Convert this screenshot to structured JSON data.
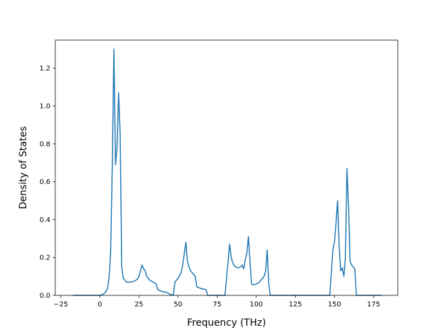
{
  "chart_data": {
    "type": "line",
    "title": "",
    "xlabel": "Frequency (THz)",
    "ylabel": "Density of States",
    "xlim": [
      -28.5,
      190.5
    ],
    "ylim": [
      0,
      1.3475
    ],
    "x_ticks": [
      -25,
      0,
      25,
      50,
      75,
      100,
      125,
      150,
      175
    ],
    "y_ticks": [
      0.0,
      0.2,
      0.4,
      0.6,
      0.8,
      1.0,
      1.2
    ],
    "grid": false,
    "legend": "none",
    "series": [
      {
        "color": "#1f77b4",
        "x": [
          -17,
          0,
          2,
          4,
          5,
          6,
          7,
          8,
          9,
          10,
          11,
          12,
          13,
          14,
          15,
          17,
          19,
          20,
          22,
          24,
          25,
          26,
          27,
          28,
          29,
          30,
          32,
          34,
          36,
          37,
          40,
          43,
          44,
          45,
          47,
          48,
          50,
          52,
          53,
          54,
          55,
          56,
          57,
          58,
          60,
          61,
          62,
          65,
          68,
          69,
          70,
          80,
          82,
          83,
          84,
          85,
          86,
          88,
          90,
          91,
          92,
          93,
          94,
          95,
          96,
          97,
          98,
          100,
          102,
          104,
          105,
          106,
          107,
          108,
          109,
          110,
          120,
          130,
          140,
          147,
          148,
          149,
          150,
          151,
          152,
          153,
          154,
          155,
          156,
          157,
          158,
          159,
          160,
          161,
          162,
          163,
          164,
          165,
          170,
          180
        ],
        "y": [
          0,
          0,
          0.005,
          0.02,
          0.04,
          0.1,
          0.25,
          0.7,
          1.3,
          0.69,
          0.78,
          1.07,
          0.85,
          0.15,
          0.09,
          0.07,
          0.07,
          0.07,
          0.075,
          0.085,
          0.1,
          0.13,
          0.16,
          0.14,
          0.13,
          0.1,
          0.08,
          0.07,
          0.06,
          0.03,
          0.02,
          0.015,
          0.01,
          0.005,
          0,
          0.07,
          0.09,
          0.12,
          0.16,
          0.22,
          0.28,
          0.18,
          0.15,
          0.13,
          0.11,
          0.1,
          0.045,
          0.035,
          0.03,
          0,
          0,
          0,
          0.18,
          0.27,
          0.2,
          0.17,
          0.155,
          0.145,
          0.15,
          0.16,
          0.14,
          0.19,
          0.22,
          0.31,
          0.18,
          0.06,
          0.055,
          0.06,
          0.07,
          0.09,
          0.1,
          0.13,
          0.24,
          0.06,
          0,
          0,
          0,
          0,
          0,
          0,
          0.12,
          0.24,
          0.28,
          0.38,
          0.5,
          0.26,
          0.13,
          0.145,
          0.1,
          0.2,
          0.67,
          0.47,
          0.18,
          0.16,
          0.15,
          0.14,
          0,
          0,
          0,
          0
        ]
      }
    ]
  }
}
